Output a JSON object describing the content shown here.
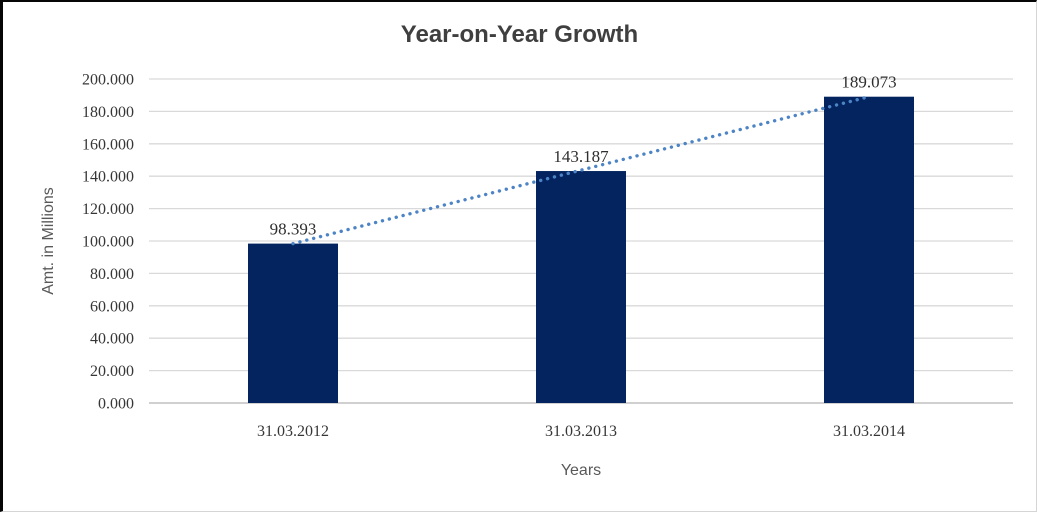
{
  "chart_data": {
    "type": "bar",
    "title": "Year-on-Year Growth",
    "xlabel": "Years",
    "ylabel": "Amt. in Millions",
    "categories": [
      "31.03.2012",
      "31.03.2013",
      "31.03.2014"
    ],
    "values": [
      98.393,
      143.187,
      189.073
    ],
    "data_labels": [
      "98.393",
      "143.187",
      "189.073"
    ],
    "ylim": [
      0,
      200
    ],
    "ytick_step": 20,
    "ytick_labels": [
      "0.000",
      "20.000",
      "40.000",
      "60.000",
      "80.000",
      "100.000",
      "120.000",
      "140.000",
      "160.000",
      "180.000",
      "200.000"
    ],
    "grid": true,
    "legend": "none",
    "bar_color": "#03245f",
    "gridline_color": "#d9d9d9",
    "axis_line_color": "#c3c3c3",
    "trendline": {
      "style": "dotted",
      "color": "#4d84c6",
      "from_value": 98.393,
      "to_value": 189.073
    }
  }
}
